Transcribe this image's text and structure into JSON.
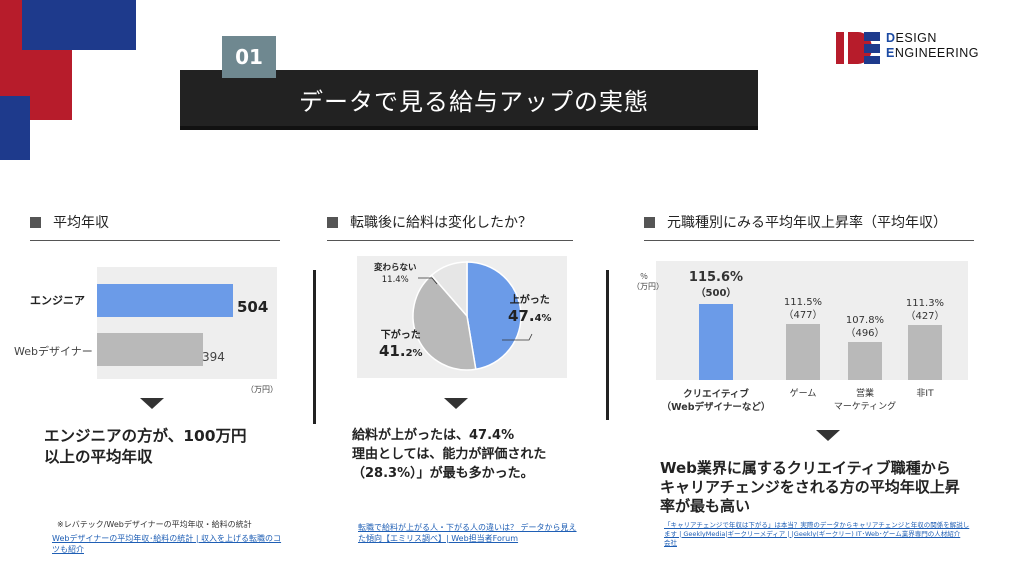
{
  "header": {
    "number": "01",
    "title": "データで見る給与アップの実態"
  },
  "logo": {
    "line1_initial": "D",
    "line1_rest": "ESIGN",
    "line2_initial": "E",
    "line2_rest": "NGINEERING"
  },
  "section1": {
    "title": "平均年収",
    "bars": [
      {
        "label": "エンジニア",
        "value": 504,
        "value_text": "504"
      },
      {
        "label": "Webデザイナー",
        "value": 394,
        "value_text": "394"
      }
    ],
    "unit": "（万円）",
    "summary_line1": "エンジニアの方が、100万円",
    "summary_line2": "以上の平均年収",
    "note": "※レバテック/Webデザイナーの平均年収・給料の統計",
    "link_line1": "Webデザイナーの平均年収･給料の統計 | 収入を上げる転職のコ",
    "link_line2": "ツも紹介",
    "colors": {
      "engineer": "#6b9be8",
      "designer": "#b9b9b9"
    }
  },
  "section2": {
    "title": "転職後に給料は変化したか？",
    "slices": [
      {
        "label": "上がった",
        "value": 47.4,
        "value_main": "47.",
        "value_dec": "4%"
      },
      {
        "label": "下がった",
        "value": 41.2,
        "value_main": "41.",
        "value_dec": "2%"
      },
      {
        "label": "変わらない",
        "value": 11.4,
        "value_text": "11.4%"
      }
    ],
    "summary_line1": "給料が上がったは、47.4%",
    "summary_line2": "理由としては、能力が評価された",
    "summary_line3": "（28.3%）」が最も多かった。",
    "link_line1": "転職で給料が上がる人・下がる人の違いは？ データから見え",
    "link_line2": "た傾向【エミリス調べ】| Web担当者Forum",
    "colors": {
      "up": "#6b9be8",
      "down": "#b9b9b9",
      "same": "#e6e6e6"
    }
  },
  "section3": {
    "title": "元職種別にみる平均年収上昇率（平均年収）",
    "axis_unit_line1": "％",
    "axis_unit_line2": "（万円）",
    "categories": [
      {
        "label_line1": "クリエイティブ",
        "label_line2": "（Webデザイナーなど）",
        "rate": 115.6,
        "rate_text": "115.6%",
        "income_text": "（500）",
        "highlight": true
      },
      {
        "label_line1": "ゲーム",
        "label_line2": "",
        "rate": 111.5,
        "rate_text": "111.5%",
        "income_text": "（477）",
        "highlight": false
      },
      {
        "label_line1": "営業",
        "label_line2": "マーケティング",
        "rate": 107.8,
        "rate_text": "107.8%",
        "income_text": "（496）",
        "highlight": false
      },
      {
        "label_line1": "非IT",
        "label_line2": "",
        "rate": 111.3,
        "rate_text": "111.3%",
        "income_text": "（427）",
        "highlight": false
      }
    ],
    "summary_line1": "Web業界に属するクリエイティブ職種から",
    "summary_line2": "キャリアチェンジをされる方の平均年収上昇",
    "summary_line3": "率が最も高い",
    "link_line1": "「キャリアチェンジで年収は下がる」は本当？実際のデータからキャリアチェンジと年収の関係を解説し",
    "link_line2": "ます | GeeklyMedia|ギークリーメディア | |Geekly(ギークリー) IT･Web･ゲーム業界専門の人材紹介",
    "link_line3": "会社",
    "colors": {
      "highlight": "#6b9be8",
      "normal": "#b9b9b9"
    }
  }
}
